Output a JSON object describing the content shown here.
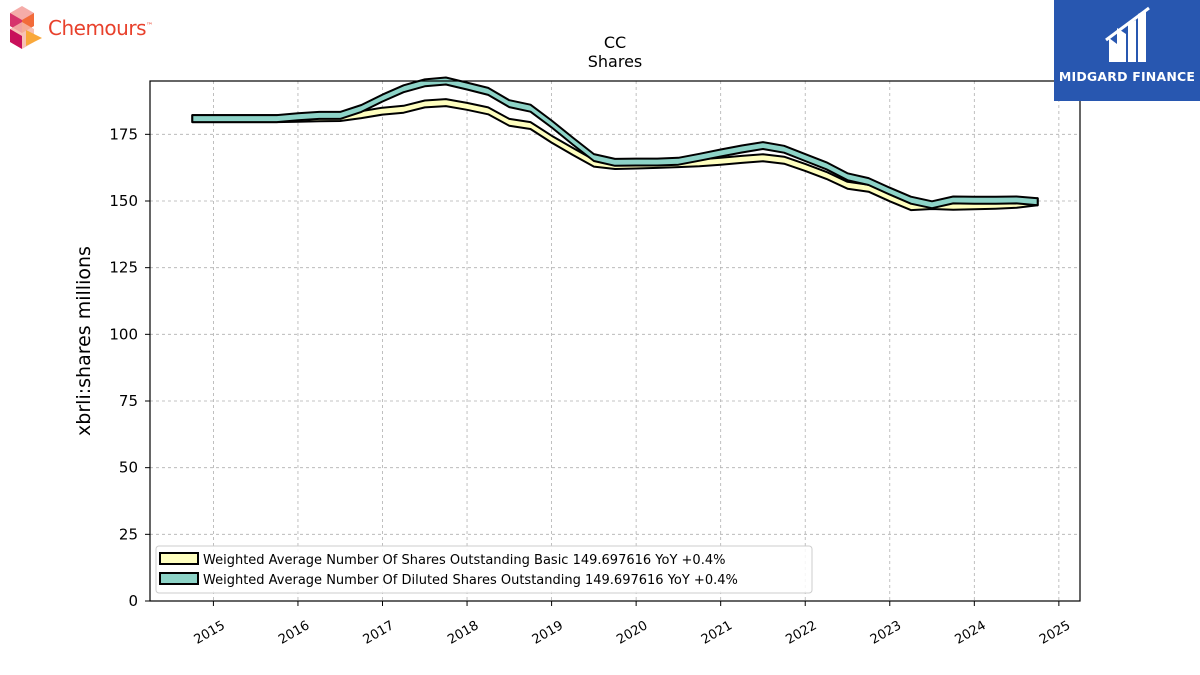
{
  "brand": {
    "left_logo_text": "Chemours",
    "left_logo_tm": "™",
    "right_logo_text": "MIDGARD FINANCE",
    "right_logo_color": "#2857b0"
  },
  "chart_data": {
    "type": "area",
    "title": "CC",
    "subtitle": "Shares",
    "xlabel": "",
    "ylabel": "xbrli:shares millions",
    "xlim": [
      2014.25,
      2025.25
    ],
    "ylim": [
      0,
      195
    ],
    "yticks": [
      0,
      25,
      50,
      75,
      100,
      125,
      150,
      175
    ],
    "xticks": [
      "2015",
      "2016",
      "2017",
      "2018",
      "2019",
      "2020",
      "2021",
      "2022",
      "2023",
      "2024",
      "2025"
    ],
    "grid": true,
    "legend_position": "lower-left",
    "x": [
      2014.75,
      2015.0,
      2015.25,
      2015.5,
      2015.75,
      2016.0,
      2016.25,
      2016.5,
      2016.75,
      2017.0,
      2017.25,
      2017.5,
      2017.75,
      2018.0,
      2018.25,
      2018.5,
      2018.75,
      2019.0,
      2019.25,
      2019.5,
      2019.75,
      2020.0,
      2020.25,
      2020.5,
      2020.75,
      2021.0,
      2021.25,
      2021.5,
      2021.75,
      2022.0,
      2022.25,
      2022.5,
      2022.75,
      2023.0,
      2023.25,
      2023.5,
      2023.75,
      2024.0,
      2024.25,
      2024.5,
      2024.75
    ],
    "series": [
      {
        "name": "Weighted Average Number Of Shares Outstanding Basic  149.697616 YoY +0.4%",
        "fill": "#ffffbf",
        "values": [
          180.9,
          180.9,
          180.9,
          180.9,
          180.9,
          181.0,
          181.2,
          181.3,
          182.4,
          183.7,
          184.4,
          186.4,
          186.9,
          185.5,
          183.8,
          179.5,
          178.3,
          173.2,
          168.6,
          164.2,
          163.3,
          163.5,
          163.7,
          164.0,
          164.3,
          164.9,
          165.6,
          166.2,
          165.3,
          162.6,
          159.6,
          155.9,
          154.8,
          151.2,
          147.9,
          148.3,
          148.0,
          148.2,
          148.4,
          148.8,
          149.7
        ]
      },
      {
        "name": "Weighted Average Number Of Diluted Shares Outstanding  149.697616 YoY +0.4%",
        "fill": "#8dd3c7",
        "values": [
          180.9,
          180.9,
          180.9,
          180.9,
          180.9,
          181.6,
          182.1,
          182.1,
          184.7,
          188.6,
          192.1,
          194.3,
          195.0,
          193.1,
          191.1,
          186.5,
          184.8,
          178.9,
          172.5,
          166.3,
          164.5,
          164.6,
          164.6,
          164.9,
          166.4,
          168.0,
          169.5,
          170.8,
          169.4,
          166.3,
          163.2,
          159.1,
          157.3,
          153.7,
          150.3,
          148.6,
          150.4,
          150.3,
          150.3,
          150.4,
          149.7
        ]
      }
    ]
  }
}
